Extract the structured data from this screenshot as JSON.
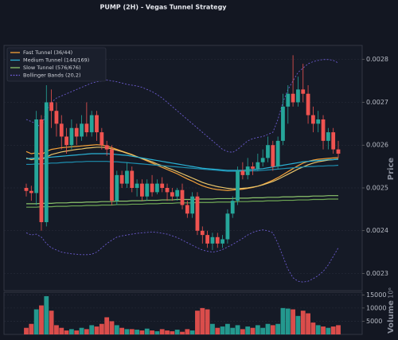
{
  "chart_data": [
    {
      "type": "candlestick",
      "title": "PUMP (2H) - Vegas Tunnel Strategy",
      "ylabel": "Price",
      "up_color": "#26a69a",
      "down_color": "#ef5350",
      "grid": true,
      "legend": "upper left",
      "ylim": [
        0.00226,
        0.002833
      ],
      "yticks": [
        0.0023,
        0.0024,
        0.0025,
        0.0026,
        0.0027,
        0.0028
      ],
      "open": [
        0.0025,
        0.002493,
        0.002488,
        0.00266,
        0.00242,
        0.0027,
        0.00268,
        0.00265,
        0.00262,
        0.0026,
        0.00264,
        0.00262,
        0.00265,
        0.00263,
        0.00267,
        0.00263,
        0.0026,
        0.00259,
        0.00247,
        0.00253,
        0.00251,
        0.00254,
        0.0025,
        0.00251,
        0.00248,
        0.00251,
        0.00249,
        0.00251,
        0.0025,
        0.00249,
        0.00248,
        0.002495,
        0.00246,
        0.00244,
        0.00248,
        0.0024,
        0.00239,
        0.00237,
        0.002385,
        0.00237,
        0.00238,
        0.00244,
        0.00247,
        0.00254,
        0.00253,
        0.00255,
        0.002545,
        0.00256,
        0.00257,
        0.0026,
        0.00255,
        0.00261,
        0.00269,
        0.00272,
        0.0027,
        0.00273,
        0.00272,
        0.00267,
        0.00265,
        0.00266,
        0.00261,
        0.00263,
        0.00259
      ],
      "high": [
        0.00251,
        0.002505,
        0.00268,
        0.00267,
        0.00274,
        0.00273,
        0.0027,
        0.00267,
        0.00264,
        0.00266,
        0.00265,
        0.00267,
        0.0027,
        0.00268,
        0.00268,
        0.00264,
        0.00261,
        0.0026,
        0.00254,
        0.00254,
        0.00256,
        0.00255,
        0.00252,
        0.00252,
        0.00252,
        0.00253,
        0.00252,
        0.002525,
        0.00251,
        0.0025,
        0.0025,
        0.00251,
        0.00247,
        0.00249,
        0.00249,
        0.00241,
        0.0024,
        0.002395,
        0.002395,
        0.00239,
        0.00245,
        0.00248,
        0.00255,
        0.00256,
        0.00257,
        0.00256,
        0.00258,
        0.00259,
        0.00262,
        0.00261,
        0.00262,
        0.00272,
        0.00274,
        0.00281,
        0.00276,
        0.00279,
        0.00274,
        0.00269,
        0.00268,
        0.00267,
        0.00264,
        0.00264,
        0.00261
      ],
      "low": [
        0.00248,
        0.00247,
        0.00246,
        0.0024,
        0.00241,
        0.00264,
        0.00262,
        0.00259,
        0.00258,
        0.00259,
        0.0026,
        0.00261,
        0.00262,
        0.00262,
        0.00261,
        0.00259,
        0.002575,
        0.00246,
        0.00246,
        0.0025,
        0.0025,
        0.00249,
        0.00248,
        0.00247,
        0.00247,
        0.00248,
        0.002485,
        0.00249,
        0.00247,
        0.00247,
        0.00247,
        0.00245,
        0.00243,
        0.00243,
        0.00239,
        0.00237,
        0.00236,
        0.002355,
        0.00236,
        0.00236,
        0.00237,
        0.00243,
        0.00246,
        0.00252,
        0.00252,
        0.00253,
        0.00254,
        0.00255,
        0.00256,
        0.00254,
        0.002545,
        0.0026,
        0.00265,
        0.00269,
        0.00269,
        0.0027,
        0.00265,
        0.00263,
        0.00263,
        0.00259,
        0.00259,
        0.00258,
        0.00257
      ],
      "close": [
        0.002493,
        0.002488,
        0.00266,
        0.00242,
        0.0027,
        0.00268,
        0.00265,
        0.00262,
        0.0026,
        0.00264,
        0.00262,
        0.00265,
        0.00263,
        0.00267,
        0.00263,
        0.0026,
        0.00259,
        0.00247,
        0.00253,
        0.00251,
        0.00254,
        0.0025,
        0.00251,
        0.00248,
        0.00251,
        0.00249,
        0.00251,
        0.0025,
        0.00249,
        0.00248,
        0.002495,
        0.00246,
        0.00244,
        0.00248,
        0.0024,
        0.00239,
        0.00237,
        0.002385,
        0.00237,
        0.00238,
        0.00244,
        0.00247,
        0.00254,
        0.00253,
        0.00255,
        0.002545,
        0.00256,
        0.00257,
        0.0026,
        0.00255,
        0.00261,
        0.00269,
        0.00272,
        0.0027,
        0.00273,
        0.00272,
        0.00267,
        0.00265,
        0.00266,
        0.00261,
        0.00263,
        0.00259,
        0.00258
      ],
      "series": [
        {
          "name": "Fast Tunnel (36/44)",
          "color": "#f5a23a",
          "values": [
            0.002585,
            0.00258,
            0.002582,
            0.002578,
            0.002585,
            0.00259,
            0.002592,
            0.002594,
            0.002595,
            0.002596,
            0.002597,
            0.002598,
            0.002599,
            0.0026,
            0.002601,
            0.0026,
            0.002598,
            0.002594,
            0.00259,
            0.002586,
            0.002582,
            0.002578,
            0.002573,
            0.002568,
            0.002563,
            0.002558,
            0.002553,
            0.002548,
            0.002543,
            0.002538,
            0.002533,
            0.002527,
            0.002521,
            0.002516,
            0.00251,
            0.002505,
            0.002501,
            0.002498,
            0.002496,
            0.002495,
            0.002494,
            0.002495,
            0.002496,
            0.002497,
            0.002499,
            0.002501,
            0.002504,
            0.002508,
            0.002513,
            0.002518,
            0.002524,
            0.002531,
            0.002538,
            0.002545,
            0.002552,
            0.002558,
            0.002562,
            0.002565,
            0.002567,
            0.002568,
            0.002569,
            0.00257,
            0.002571
          ]
        },
        {
          "color": "#e8c46a",
          "values": [
            0.00257,
            0.002566,
            0.002568,
            0.002566,
            0.002572,
            0.002578,
            0.002581,
            0.002584,
            0.002586,
            0.002588,
            0.00259,
            0.002591,
            0.002593,
            0.002594,
            0.002595,
            0.002595,
            0.002594,
            0.002591,
            0.002588,
            0.002585,
            0.002581,
            0.002577,
            0.002573,
            0.002569,
            0.002565,
            0.002561,
            0.002556,
            0.002552,
            0.002547,
            0.002543,
            0.002538,
            0.002533,
            0.002528,
            0.002523,
            0.002518,
            0.002513,
            0.002509,
            0.002506,
            0.002503,
            0.002501,
            0.002499,
            0.002498,
            0.002498,
            0.002499,
            0.0025,
            0.002502,
            0.002504,
            0.002507,
            0.002511,
            0.002515,
            0.00252,
            0.002526,
            0.002532,
            0.002538,
            0.002544,
            0.002549,
            0.002554,
            0.002558,
            0.002561,
            0.002563,
            0.002565,
            0.002566,
            0.002568
          ]
        },
        {
          "name": "Medium Tunnel (144/169)",
          "color": "#2bb3d6",
          "values": [
            0.002568,
            0.002569,
            0.00257,
            0.00257,
            0.002571,
            0.002572,
            0.002573,
            0.002574,
            0.002575,
            0.002576,
            0.002577,
            0.002578,
            0.002579,
            0.00258,
            0.00258,
            0.00258,
            0.00258,
            0.002579,
            0.002578,
            0.002577,
            0.002576,
            0.002574,
            0.002572,
            0.00257,
            0.002568,
            0.002566,
            0.002564,
            0.002562,
            0.00256,
            0.002558,
            0.002556,
            0.002554,
            0.002552,
            0.00255,
            0.002548,
            0.002546,
            0.002545,
            0.002544,
            0.002543,
            0.002542,
            0.002541,
            0.002541,
            0.002541,
            0.002541,
            0.002542,
            0.002543,
            0.002544,
            0.002545,
            0.002547,
            0.002549,
            0.002551,
            0.002553,
            0.002555,
            0.002557,
            0.002559,
            0.002561,
            0.002562,
            0.002563,
            0.002564,
            0.002565,
            0.002566,
            0.002566,
            0.002567
          ]
        },
        {
          "color": "#1e8fb0",
          "values": [
            0.002555,
            0.002555,
            0.002556,
            0.002556,
            0.002557,
            0.002558,
            0.002558,
            0.002559,
            0.00256,
            0.00256,
            0.002561,
            0.002561,
            0.002562,
            0.002562,
            0.002562,
            0.002562,
            0.002562,
            0.002561,
            0.002561,
            0.00256,
            0.002559,
            0.002558,
            0.002557,
            0.002556,
            0.002555,
            0.002554,
            0.002553,
            0.002552,
            0.002551,
            0.00255,
            0.002549,
            0.002548,
            0.002547,
            0.002546,
            0.002545,
            0.002544,
            0.002543,
            0.002542,
            0.002541,
            0.00254,
            0.002539,
            0.002539,
            0.002539,
            0.002539,
            0.002539,
            0.00254,
            0.00254,
            0.002541,
            0.002542,
            0.002543,
            0.002544,
            0.002545,
            0.002546,
            0.002547,
            0.002548,
            0.002549,
            0.00255,
            0.00255,
            0.002551,
            0.002551,
            0.002552,
            0.002552,
            0.002553
          ]
        },
        {
          "name": "Slow Tunnel (576/676)",
          "color": "#8cc46c",
          "values": [
            0.002463,
            0.002463,
            0.002463,
            0.002464,
            0.002464,
            0.002464,
            0.002465,
            0.002465,
            0.002465,
            0.002466,
            0.002466,
            0.002466,
            0.002467,
            0.002467,
            0.002467,
            0.002468,
            0.002468,
            0.002468,
            0.002469,
            0.002469,
            0.002469,
            0.00247,
            0.00247,
            0.00247,
            0.002471,
            0.002471,
            0.002471,
            0.002472,
            0.002472,
            0.002472,
            0.002473,
            0.002473,
            0.002473,
            0.002473,
            0.002474,
            0.002474,
            0.002474,
            0.002474,
            0.002475,
            0.002475,
            0.002475,
            0.002475,
            0.002476,
            0.002476,
            0.002476,
            0.002477,
            0.002477,
            0.002477,
            0.002478,
            0.002478,
            0.002478,
            0.002479,
            0.002479,
            0.002479,
            0.00248,
            0.00248,
            0.00248,
            0.002481,
            0.002481,
            0.002481,
            0.002482,
            0.002482,
            0.002482
          ]
        },
        {
          "color": "#6fa855",
          "values": [
            0.002455,
            0.002455,
            0.002455,
            0.002456,
            0.002456,
            0.002456,
            0.002457,
            0.002457,
            0.002457,
            0.002458,
            0.002458,
            0.002458,
            0.002459,
            0.002459,
            0.002459,
            0.00246,
            0.00246,
            0.00246,
            0.002461,
            0.002461,
            0.002461,
            0.002462,
            0.002462,
            0.002462,
            0.002463,
            0.002463,
            0.002463,
            0.002464,
            0.002464,
            0.002464,
            0.002465,
            0.002465,
            0.002465,
            0.002465,
            0.002466,
            0.002466,
            0.002466,
            0.002466,
            0.002467,
            0.002467,
            0.002467,
            0.002467,
            0.002468,
            0.002468,
            0.002468,
            0.002469,
            0.002469,
            0.002469,
            0.00247,
            0.00247,
            0.00247,
            0.002471,
            0.002471,
            0.002471,
            0.002472,
            0.002472,
            0.002472,
            0.002473,
            0.002473,
            0.002473,
            0.002474,
            0.002474,
            0.002474
          ]
        },
        {
          "name": "Bollinger Bands (20,2)",
          "color": "#6a5acd",
          "dashed": true,
          "values": [
            0.00266,
            0.002655,
            0.00265,
            0.00264,
            0.00268,
            0.0027,
            0.00271,
            0.002715,
            0.00272,
            0.002725,
            0.00273,
            0.002735,
            0.00274,
            0.002745,
            0.002748,
            0.00275,
            0.002752,
            0.00275,
            0.002748,
            0.002745,
            0.002742,
            0.00274,
            0.002738,
            0.002735,
            0.00273,
            0.002725,
            0.002718,
            0.00271,
            0.0027,
            0.00269,
            0.00268,
            0.00267,
            0.00266,
            0.00265,
            0.00264,
            0.00263,
            0.00262,
            0.00261,
            0.0026,
            0.00259,
            0.002585,
            0.002583,
            0.00259,
            0.0026,
            0.00261,
            0.002615,
            0.002618,
            0.00262,
            0.002625,
            0.00263,
            0.00266,
            0.0027,
            0.00273,
            0.00275,
            0.00277,
            0.00278,
            0.00279,
            0.002795,
            0.002798,
            0.0028,
            0.0028,
            0.002798,
            0.002792
          ]
        },
        {
          "color": "#6a5acd",
          "dashed": true,
          "values": [
            0.002395,
            0.00239,
            0.002392,
            0.002385,
            0.00237,
            0.00236,
            0.002355,
            0.00235,
            0.002348,
            0.002346,
            0.002345,
            0.002344,
            0.002344,
            0.002345,
            0.00235,
            0.00236,
            0.00237,
            0.002378,
            0.002385,
            0.002388,
            0.00239,
            0.002392,
            0.002394,
            0.002395,
            0.002396,
            0.002397,
            0.002396,
            0.002394,
            0.002392,
            0.002388,
            0.002384,
            0.002378,
            0.002372,
            0.002366,
            0.00236,
            0.002355,
            0.002352,
            0.00235,
            0.002352,
            0.002356,
            0.002362,
            0.002368,
            0.002375,
            0.002382,
            0.00239,
            0.002396,
            0.0024,
            0.002402,
            0.0024,
            0.002395,
            0.00237,
            0.00234,
            0.00231,
            0.00229,
            0.002282,
            0.00228,
            0.002282,
            0.002288,
            0.002295,
            0.002305,
            0.00232,
            0.00234,
            0.00236
          ]
        }
      ]
    },
    {
      "type": "bar",
      "ylabel": "Volume",
      "offset_label": "10⁶",
      "ylim": [
        0,
        16000
      ],
      "yticks": [
        5000,
        10000,
        15000
      ],
      "grid": true,
      "values": [
        2500,
        4000,
        9500,
        11000,
        14500,
        9000,
        3500,
        2500,
        1500,
        2000,
        1500,
        2500,
        2000,
        3500,
        3000,
        4000,
        6500,
        5000,
        3500,
        2500,
        2000,
        2000,
        1800,
        1500,
        2200,
        1500,
        1200,
        2000,
        1500,
        1200,
        1800,
        1000,
        2000,
        1500,
        9000,
        10000,
        9500,
        4000,
        2500,
        3000,
        4000,
        2500,
        3500,
        2000,
        3000,
        2500,
        3500,
        2500,
        4000,
        3500,
        4000,
        10000,
        9800,
        9500,
        7000,
        9000,
        8000,
        4500,
        3500,
        3000,
        2500,
        3000,
        3500
      ]
    }
  ]
}
